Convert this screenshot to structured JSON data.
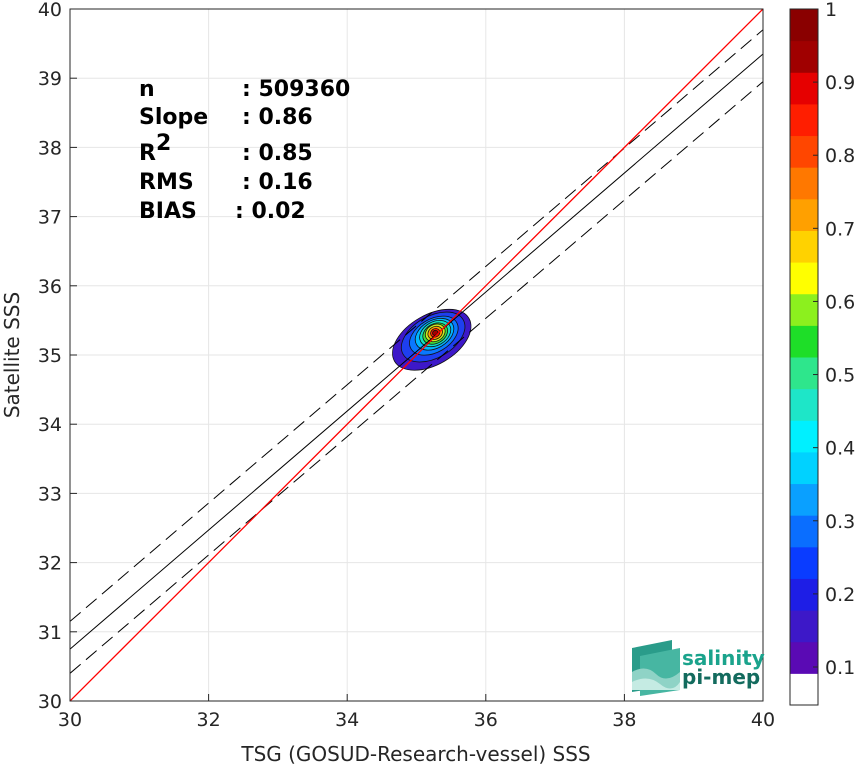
{
  "chart_data": {
    "type": "contour-density-scatter",
    "xlabel": "TSG (GOSUD-Research-vessel) SSS",
    "ylabel": "Satellite SSS",
    "xlim": [
      30,
      40
    ],
    "ylim": [
      30,
      40
    ],
    "xticks": [
      30,
      32,
      34,
      36,
      38,
      40
    ],
    "yticks": [
      30,
      31,
      32,
      33,
      34,
      35,
      36,
      37,
      38,
      39,
      40
    ],
    "grid": true,
    "stats": [
      {
        "key": "n",
        "sep": ":",
        "value": "509360"
      },
      {
        "key": "Slope",
        "sep": ":",
        "value": "0.86"
      },
      {
        "key": "R",
        "sup": "2",
        "sep": ":",
        "value": "0.85"
      },
      {
        "key": "RMS",
        "sep": ":",
        "value": "0.16"
      },
      {
        "key": "BIAS",
        "sep": ":",
        "value": "0.02"
      }
    ],
    "one_to_one_line": {
      "color": "#ff0000",
      "x": [
        30,
        40
      ],
      "y": [
        30,
        40
      ]
    },
    "regression_line": {
      "color": "#000000",
      "x": [
        30,
        40
      ],
      "y": [
        30.75,
        39.35
      ]
    },
    "rms_bounds": [
      {
        "style": "dashed",
        "x": [
          30,
          40
        ],
        "y": [
          31.15,
          39.7
        ]
      },
      {
        "style": "dashed",
        "x": [
          30,
          40
        ],
        "y": [
          30.4,
          38.95
        ]
      }
    ],
    "density_center": {
      "x": 35.27,
      "y": 35.32
    },
    "density_levels": [
      {
        "level": 0.05,
        "color": "#3d18c8",
        "rx": 0.62,
        "ry": 0.36,
        "cx": 35.22,
        "cy": 35.22
      },
      {
        "level": 0.15,
        "color": "#1e3ff0",
        "rx": 0.5,
        "ry": 0.3,
        "cx": 35.24,
        "cy": 35.26
      },
      {
        "level": 0.25,
        "color": "#0a78ff",
        "rx": 0.38,
        "ry": 0.24,
        "cx": 35.25,
        "cy": 35.28
      },
      {
        "level": 0.35,
        "color": "#00b6ff",
        "rx": 0.3,
        "ry": 0.2,
        "cx": 35.26,
        "cy": 35.3
      },
      {
        "level": 0.45,
        "color": "#11e0c0",
        "rx": 0.24,
        "ry": 0.17,
        "cx": 35.27,
        "cy": 35.31
      },
      {
        "level": 0.55,
        "color": "#3ddc3a",
        "rx": 0.19,
        "ry": 0.14,
        "cx": 35.27,
        "cy": 35.31
      },
      {
        "level": 0.65,
        "color": "#c8ec1e",
        "rx": 0.15,
        "ry": 0.12,
        "cx": 35.27,
        "cy": 35.32
      },
      {
        "level": 0.75,
        "color": "#ffa000",
        "rx": 0.11,
        "ry": 0.09,
        "cx": 35.27,
        "cy": 35.32
      },
      {
        "level": 0.85,
        "color": "#ff2200",
        "rx": 0.07,
        "ry": 0.06,
        "cx": 35.27,
        "cy": 35.32
      },
      {
        "level": 0.95,
        "color": "#a40000",
        "rx": 0.04,
        "ry": 0.035,
        "cx": 35.27,
        "cy": 35.32
      }
    ],
    "colorbar": {
      "range": [
        0,
        1
      ],
      "ticks": [
        0.1,
        0.2,
        0.3,
        0.4,
        0.5,
        0.6,
        0.7,
        0.8,
        0.9,
        1
      ],
      "tick_labels": [
        "0.1",
        "0.2",
        "0.3",
        "0.4",
        "0.5",
        "0.6",
        "0.7",
        "0.8",
        "0.9",
        "1"
      ],
      "bottom_color": "#ffffff",
      "colors": [
        "#ffffff",
        "#5a0ab4",
        "#3d18c8",
        "#1e1ee6",
        "#0a3cff",
        "#0a6eff",
        "#0aa0ff",
        "#00d2ff",
        "#00f0ff",
        "#1ee6c8",
        "#2ee68c",
        "#1ede28",
        "#8cf01e",
        "#ffff00",
        "#ffd200",
        "#ffa000",
        "#ff7800",
        "#ff4600",
        "#ff1e00",
        "#e60000",
        "#a00000",
        "#8a0000"
      ]
    }
  },
  "logo": {
    "line1": "salinity",
    "line2": "pi-mep"
  }
}
